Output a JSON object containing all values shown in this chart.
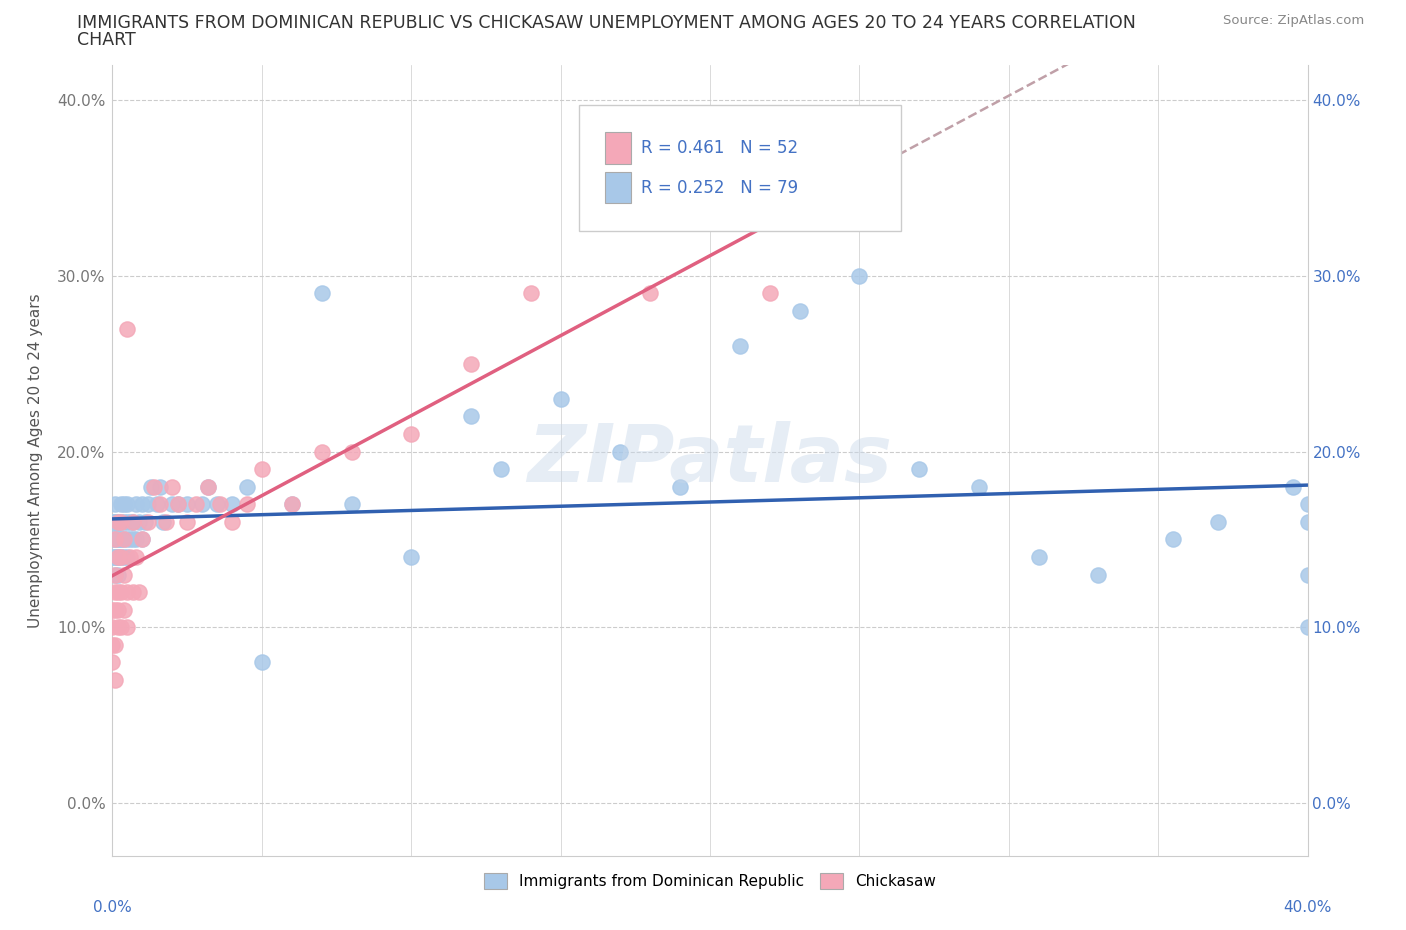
{
  "title_line1": "IMMIGRANTS FROM DOMINICAN REPUBLIC VS CHICKASAW UNEMPLOYMENT AMONG AGES 20 TO 24 YEARS CORRELATION",
  "title_line2": "CHART",
  "source": "Source: ZipAtlas.com",
  "ylabel": "Unemployment Among Ages 20 to 24 years",
  "series1_label": "Immigrants from Dominican Republic",
  "series2_label": "Chickasaw",
  "series1_color": "#a8c8e8",
  "series2_color": "#f4a8b8",
  "series1_line_color": "#3060b0",
  "series2_line_color": "#e06080",
  "series1_R": 0.252,
  "series1_N": 79,
  "series2_R": 0.461,
  "series2_N": 52,
  "legend_color": "#4472c4",
  "watermark": "ZIPatlas",
  "xlim": [
    0.0,
    0.4
  ],
  "ylim": [
    -0.03,
    0.42
  ],
  "yticks": [
    0.0,
    0.1,
    0.2,
    0.3,
    0.4
  ],
  "series1_x": [
    0.0,
    0.0,
    0.0,
    0.001,
    0.001,
    0.001,
    0.001,
    0.001,
    0.001,
    0.001,
    0.001,
    0.001,
    0.002,
    0.002,
    0.002,
    0.002,
    0.002,
    0.002,
    0.002,
    0.003,
    0.003,
    0.003,
    0.003,
    0.003,
    0.004,
    0.004,
    0.004,
    0.004,
    0.005,
    0.005,
    0.005,
    0.005,
    0.006,
    0.006,
    0.007,
    0.007,
    0.008,
    0.008,
    0.009,
    0.01,
    0.01,
    0.011,
    0.012,
    0.013,
    0.015,
    0.016,
    0.017,
    0.02,
    0.022,
    0.025,
    0.03,
    0.032,
    0.035,
    0.04,
    0.045,
    0.05,
    0.06,
    0.07,
    0.08,
    0.1,
    0.12,
    0.13,
    0.15,
    0.17,
    0.19,
    0.21,
    0.23,
    0.25,
    0.27,
    0.29,
    0.31,
    0.33,
    0.355,
    0.37,
    0.395,
    0.4,
    0.4,
    0.4,
    0.4
  ],
  "series1_y": [
    0.14,
    0.15,
    0.16,
    0.13,
    0.14,
    0.15,
    0.16,
    0.17,
    0.16,
    0.15,
    0.14,
    0.16,
    0.13,
    0.14,
    0.15,
    0.16,
    0.14,
    0.15,
    0.16,
    0.14,
    0.15,
    0.16,
    0.17,
    0.15,
    0.14,
    0.15,
    0.16,
    0.17,
    0.14,
    0.15,
    0.16,
    0.17,
    0.15,
    0.16,
    0.15,
    0.16,
    0.15,
    0.17,
    0.16,
    0.15,
    0.17,
    0.16,
    0.17,
    0.18,
    0.17,
    0.18,
    0.16,
    0.17,
    0.17,
    0.17,
    0.17,
    0.18,
    0.17,
    0.17,
    0.18,
    0.08,
    0.17,
    0.29,
    0.17,
    0.14,
    0.22,
    0.19,
    0.23,
    0.2,
    0.18,
    0.26,
    0.28,
    0.3,
    0.19,
    0.18,
    0.14,
    0.13,
    0.15,
    0.16,
    0.18,
    0.16,
    0.13,
    0.1,
    0.17
  ],
  "series2_x": [
    0.0,
    0.0,
    0.0,
    0.0,
    0.001,
    0.001,
    0.001,
    0.001,
    0.001,
    0.001,
    0.002,
    0.002,
    0.002,
    0.002,
    0.002,
    0.003,
    0.003,
    0.003,
    0.003,
    0.004,
    0.004,
    0.004,
    0.005,
    0.005,
    0.005,
    0.006,
    0.007,
    0.007,
    0.008,
    0.009,
    0.01,
    0.012,
    0.014,
    0.016,
    0.018,
    0.02,
    0.022,
    0.025,
    0.028,
    0.032,
    0.036,
    0.04,
    0.045,
    0.05,
    0.06,
    0.07,
    0.08,
    0.1,
    0.12,
    0.14,
    0.18,
    0.22
  ],
  "series2_y": [
    0.09,
    0.1,
    0.11,
    0.08,
    0.07,
    0.09,
    0.11,
    0.12,
    0.13,
    0.15,
    0.1,
    0.11,
    0.12,
    0.14,
    0.16,
    0.1,
    0.12,
    0.14,
    0.16,
    0.11,
    0.13,
    0.15,
    0.1,
    0.12,
    0.27,
    0.14,
    0.12,
    0.16,
    0.14,
    0.12,
    0.15,
    0.16,
    0.18,
    0.17,
    0.16,
    0.18,
    0.17,
    0.16,
    0.17,
    0.18,
    0.17,
    0.16,
    0.17,
    0.19,
    0.17,
    0.2,
    0.2,
    0.21,
    0.25,
    0.29,
    0.29,
    0.29
  ]
}
